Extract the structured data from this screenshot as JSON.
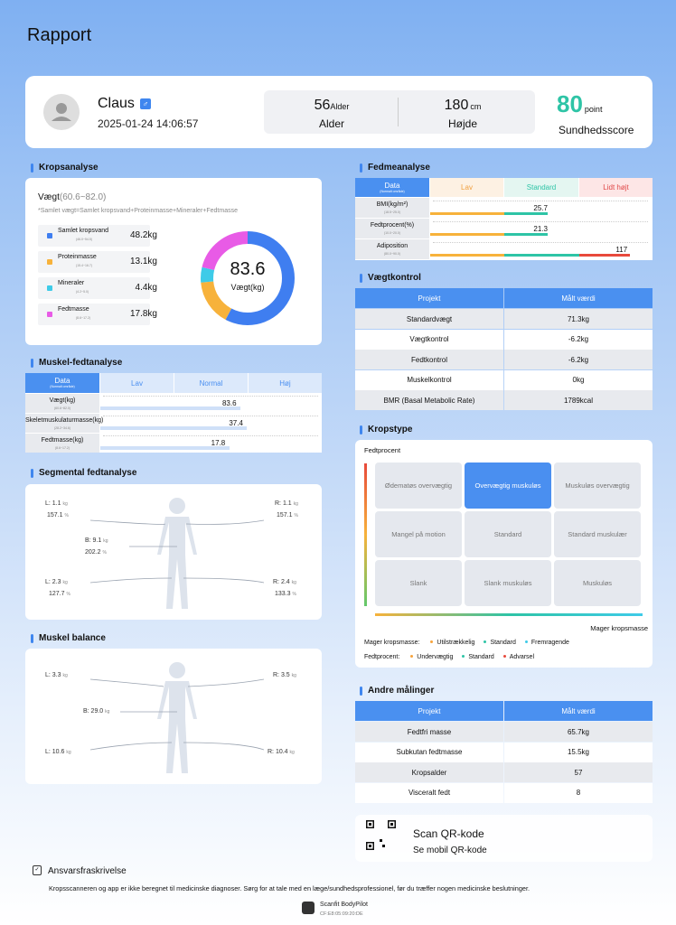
{
  "header": {
    "title": "Rapport"
  },
  "profile": {
    "name": "Claus",
    "gender_icon": "male-icon",
    "datetime": "2025-01-24 14:06:57",
    "age_value": "56",
    "age_unit": "Alder",
    "age_label": "Alder",
    "height_value": "180",
    "height_unit": "cm",
    "height_label": "Højde",
    "score_value": "80",
    "score_unit": "point",
    "score_label": "Sundhedsscore",
    "score_color": "#2ec4a6"
  },
  "body_comp": {
    "title": "Kropsanalyse",
    "weight_label": "Vægt",
    "weight_range": "(60.6~82.0)",
    "formula": "*Samlet vægt=Samlet kropsvand+Proteinmasse+Mineraler+Fedtmasse",
    "items": [
      {
        "label": "Samlet kropsvand",
        "range": "(46.0~54.5)",
        "value": "48.2kg",
        "color": "#3f7ef0"
      },
      {
        "label": "Proteinmasse",
        "range": "(15.4~16.7)",
        "value": "13.1kg",
        "color": "#f7b23b"
      },
      {
        "label": "Mineraler",
        "range": "(4.2~5.0)",
        "value": "4.4kg",
        "color": "#3ecbe8"
      },
      {
        "label": "Fedtmasse",
        "range": "(8.6~17.2)",
        "value": "17.8kg",
        "color": "#e85be6"
      }
    ],
    "donut_value": "83.6",
    "donut_label": "Vægt(kg)"
  },
  "muscle_fat": {
    "title": "Muskel-fedtanalyse",
    "col_data": "Data",
    "col_data_sub": "(Normalt område)",
    "col_low": "Lav",
    "col_normal": "Normal",
    "col_high": "Høj",
    "rows": [
      {
        "label": "Vægt(kg)",
        "range": "(60.6~82.0)",
        "value": "83.6",
        "level": 0.63
      },
      {
        "label": "Skeletmuskulaturmasse(kg)",
        "range": "(28.2~34.6)",
        "value": "37.4",
        "level": 0.66
      },
      {
        "label": "Fedtmasse(kg)",
        "range": "(8.6~17.2)",
        "value": "17.8",
        "level": 0.58
      }
    ]
  },
  "seg_fat": {
    "title": "Segmental fedtanalyse",
    "la_label": "L: 1.1",
    "la_unit": "kg",
    "la_pct": "157.1",
    "ra_label": "R: 1.1",
    "ra_unit": "kg",
    "ra_pct": "157.1",
    "trunk_label": "B: 9.1",
    "trunk_unit": "kg",
    "trunk_pct": "202.2",
    "ll_label": "L: 2.3",
    "ll_unit": "kg",
    "ll_pct": "127.7",
    "rl_label": "R: 2.4",
    "rl_unit": "kg",
    "rl_pct": "133.3",
    "pct_sign": "%"
  },
  "muscle_bal": {
    "title": "Muskel balance",
    "la": "L: 3.3",
    "ra": "R: 3.5",
    "trunk": "B: 29.0",
    "ll": "L: 10.6",
    "rl": "R: 10.4",
    "unit": "kg"
  },
  "fat_analysis": {
    "title": "Fedmeanalyse",
    "col_data": "Data",
    "col_data_sub": "(Normalt område)",
    "col_low": "Lav",
    "col_std": "Standard",
    "col_high": "Lidt højt",
    "rows": [
      {
        "label": "BMI(kg/m²)",
        "range": "(18.5~25.0)",
        "value": "25.7",
        "level": 0.53
      },
      {
        "label": "Fedtprocent(%)",
        "range": "(10.0~20.0)",
        "value": "21.3",
        "level": 0.53
      },
      {
        "label": "Adiposition",
        "range": "(80.0~90.0)",
        "value": "117",
        "level": 0.9
      }
    ]
  },
  "weight_ctrl": {
    "title": "Vægtkontrol",
    "col1": "Projekt",
    "col2": "Målt værdi",
    "rows": [
      [
        "Standardvægt",
        "71.3kg"
      ],
      [
        "Vægtkontrol",
        "-6.2kg"
      ],
      [
        "Fedtkontrol",
        "-6.2kg"
      ],
      [
        "Muskelkontrol",
        "0kg"
      ],
      [
        "BMR (Basal Metabolic Rate)",
        "1789kcal"
      ]
    ]
  },
  "body_type": {
    "title": "Kropstype",
    "y_label": "Fedtprocent",
    "x_label": "Mager kropsmasse",
    "cells": [
      "Ødematøs overvægtig",
      "Overvægtig muskuløs",
      "Muskuløs overvægtig",
      "Mangel på motion",
      "Standard",
      "Standard muskulær",
      "Slank",
      "Slank muskuløs",
      "Muskuløs"
    ],
    "selected": 1,
    "legend1_title": "Mager kropsmasse:",
    "legend1": [
      "Utilstrækkelig",
      "Standard",
      "Fremragende"
    ],
    "legend2_title": "Fedtprocent:",
    "legend2": [
      "Undervægtig",
      "Standard",
      "Advarsel"
    ]
  },
  "other": {
    "title": "Andre målinger",
    "col1": "Projekt",
    "col2": "Målt værdi",
    "rows": [
      [
        "Fedtfri masse",
        "65.7kg"
      ],
      [
        "Subkutan fedtmasse",
        "15.5kg"
      ],
      [
        "Kropsalder",
        "57"
      ],
      [
        "Visceralt fedt",
        "8"
      ]
    ]
  },
  "qr": {
    "title": "Scan QR-kode",
    "subtitle": "Se mobil QR-kode"
  },
  "disclaimer": {
    "title": "Ansvarsfraskrivelse",
    "text": "Kropsscanneren og app er ikke beregnet til medicinske diagnoser. Sørg for at tale med en læge/sundhedsprofessionel, før du træffer nogen medicinske beslutninger."
  },
  "footer": {
    "brand": "Scanfit BodyPilot",
    "id": "CF:E8:05:09:20:DE"
  }
}
